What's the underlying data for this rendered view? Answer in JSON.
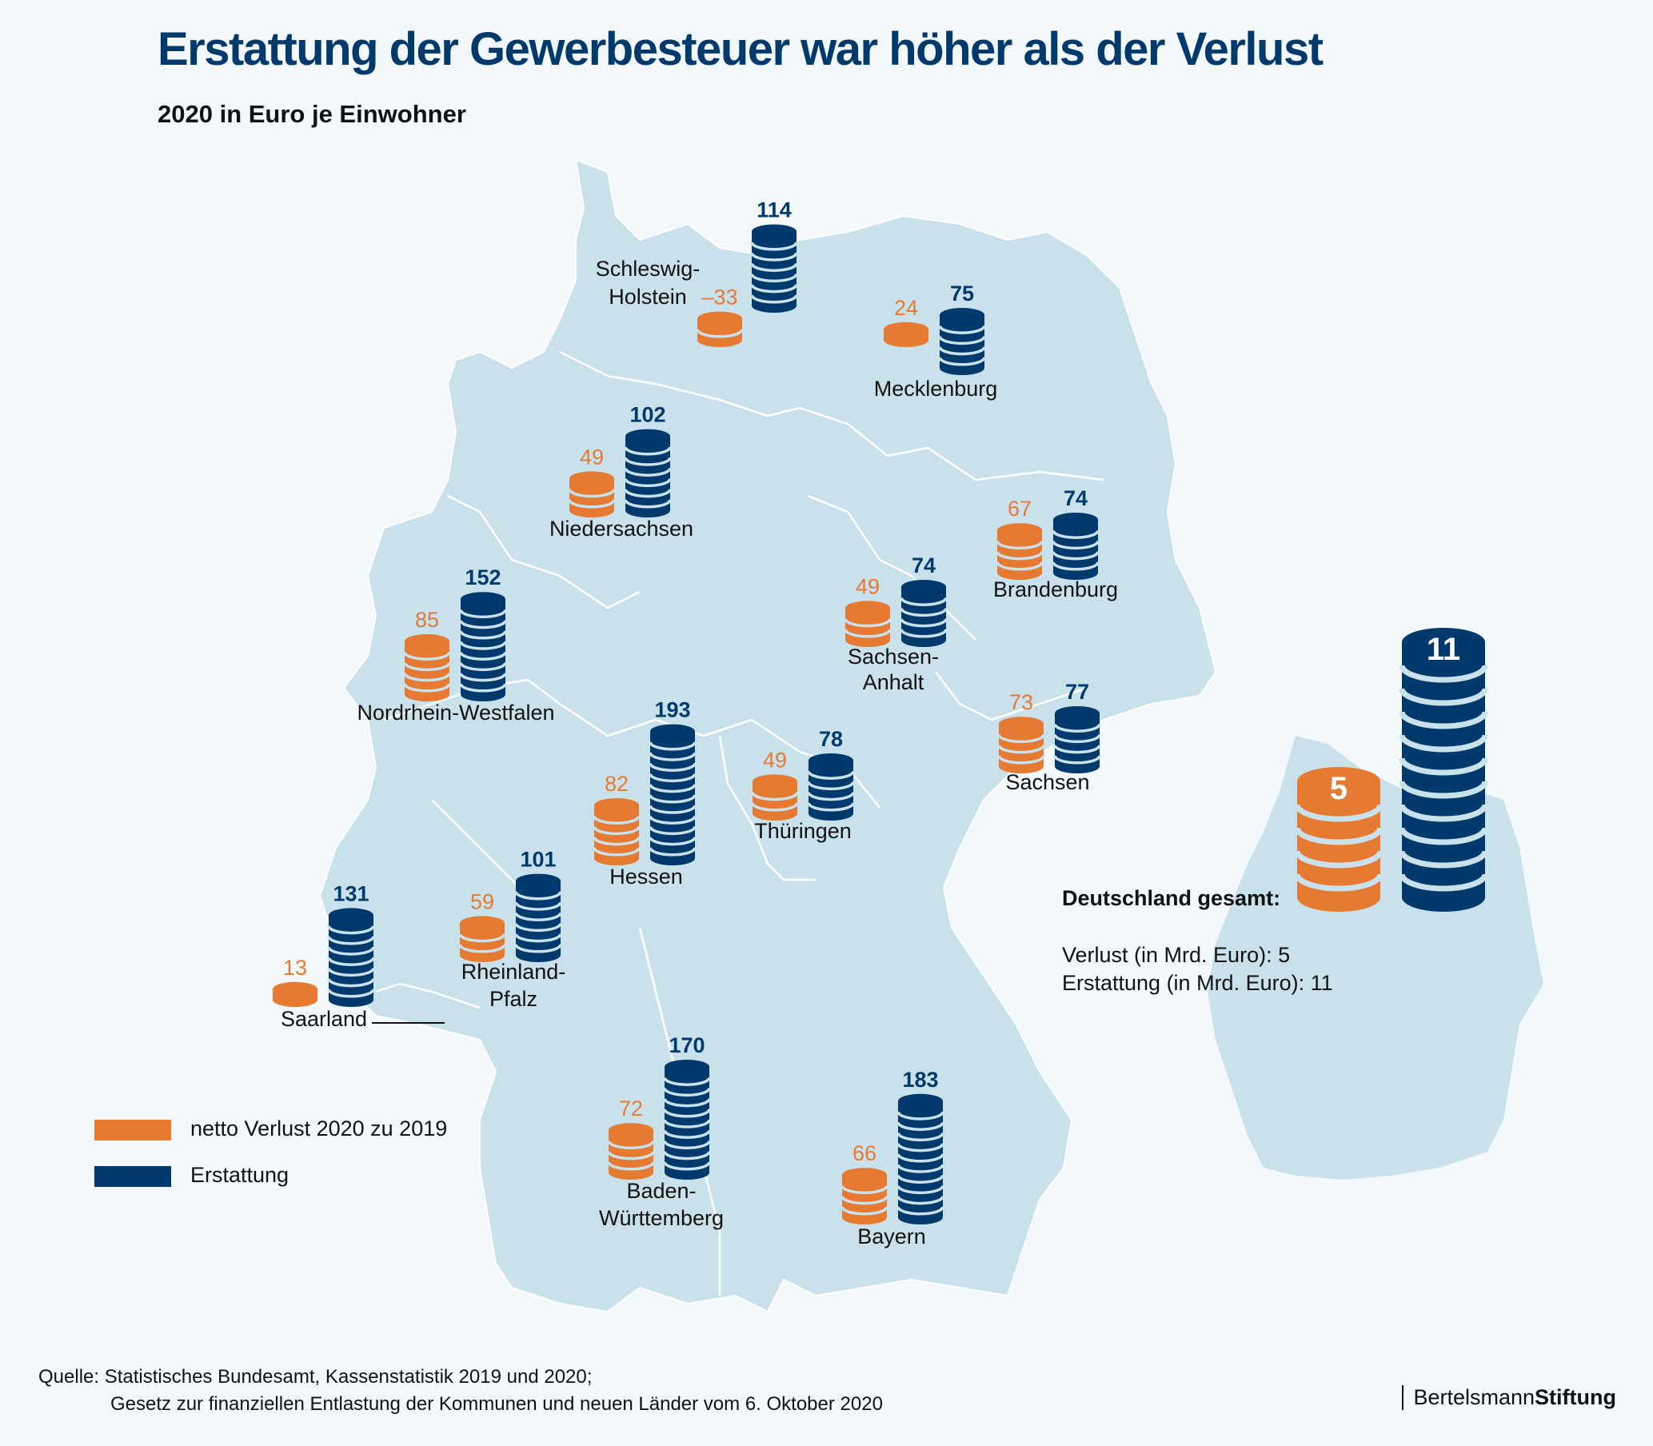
{
  "header": {
    "title": "Erstattung der Gewerbesteuer war höher als der Verlust",
    "subtitle": "2020 in Euro je Einwohner"
  },
  "colors": {
    "verlust": "#e67a32",
    "erstattung": "#003a6d",
    "map_fill": "#c9e1ea",
    "background": "#f2f8fb"
  },
  "legend": [
    {
      "label": "netto Verlust 2020 zu 2019",
      "series": "verlust"
    },
    {
      "label": "Erstattung",
      "series": "erstattung"
    }
  ],
  "total": {
    "heading": "Deutschland gesamt:",
    "verlust_label": "Verlust (in Mrd. Euro):  5",
    "erstattung_label": "Erstattung  (in Mrd. Euro):  11",
    "verlust_value": 5,
    "erstattung_value": 11
  },
  "source": {
    "line1": "Quelle: Statistisches Bundesamt, Kassenstatistik 2019 und 2020;",
    "line2": "Gesetz zur finanziellen Entlastung der Kommunen und neuen Länder vom 6. Oktober 2020"
  },
  "brand": {
    "normal": "Bertelsmann",
    "bold": "Stiftung"
  },
  "chart_data": {
    "type": "bar",
    "title": "Erstattung der Gewerbesteuer war höher als der Verlust",
    "subtitle": "2020 in Euro je Einwohner",
    "unit": "Euro je Einwohner",
    "categories": [
      "Schleswig-Holstein",
      "Mecklenburg",
      "Niedersachsen",
      "Nordrhein-Westfalen",
      "Brandenburg",
      "Sachsen-Anhalt",
      "Hessen",
      "Thüringen",
      "Sachsen",
      "Saarland",
      "Rheinland-Pfalz",
      "Baden-Württemberg",
      "Bayern"
    ],
    "category_display": [
      [
        "Schleswig-",
        "Holstein"
      ],
      [
        "Mecklenburg"
      ],
      [
        "Niedersachsen"
      ],
      [
        "Nordrhein-Westfalen"
      ],
      [
        "Brandenburg"
      ],
      [
        "Sachsen-",
        "Anhalt"
      ],
      [
        "Hessen"
      ],
      [
        "Thüringen"
      ],
      [
        "Sachsen"
      ],
      [
        "Saarland"
      ],
      [
        "Rheinland-",
        "Pfalz"
      ],
      [
        "Baden-",
        "Württemberg"
      ],
      [
        "Bayern"
      ]
    ],
    "value_labels_verlust": [
      "–33",
      "24",
      "49",
      "85",
      "67",
      "49",
      "82",
      "49",
      "73",
      "13",
      "59",
      "72",
      "66"
    ],
    "series": [
      {
        "name": "netto Verlust 2020 zu 2019",
        "key": "verlust",
        "values": [
          -33,
          24,
          49,
          85,
          67,
          49,
          82,
          49,
          73,
          13,
          59,
          72,
          66
        ]
      },
      {
        "name": "Erstattung",
        "key": "erstattung",
        "values": [
          114,
          75,
          102,
          152,
          74,
          74,
          193,
          78,
          77,
          131,
          101,
          170,
          183
        ]
      }
    ],
    "totals": {
      "unit": "Mrd. Euro",
      "Verlust": 5,
      "Erstattung": 11
    },
    "legend_position": "bottom-left",
    "grid": false
  }
}
